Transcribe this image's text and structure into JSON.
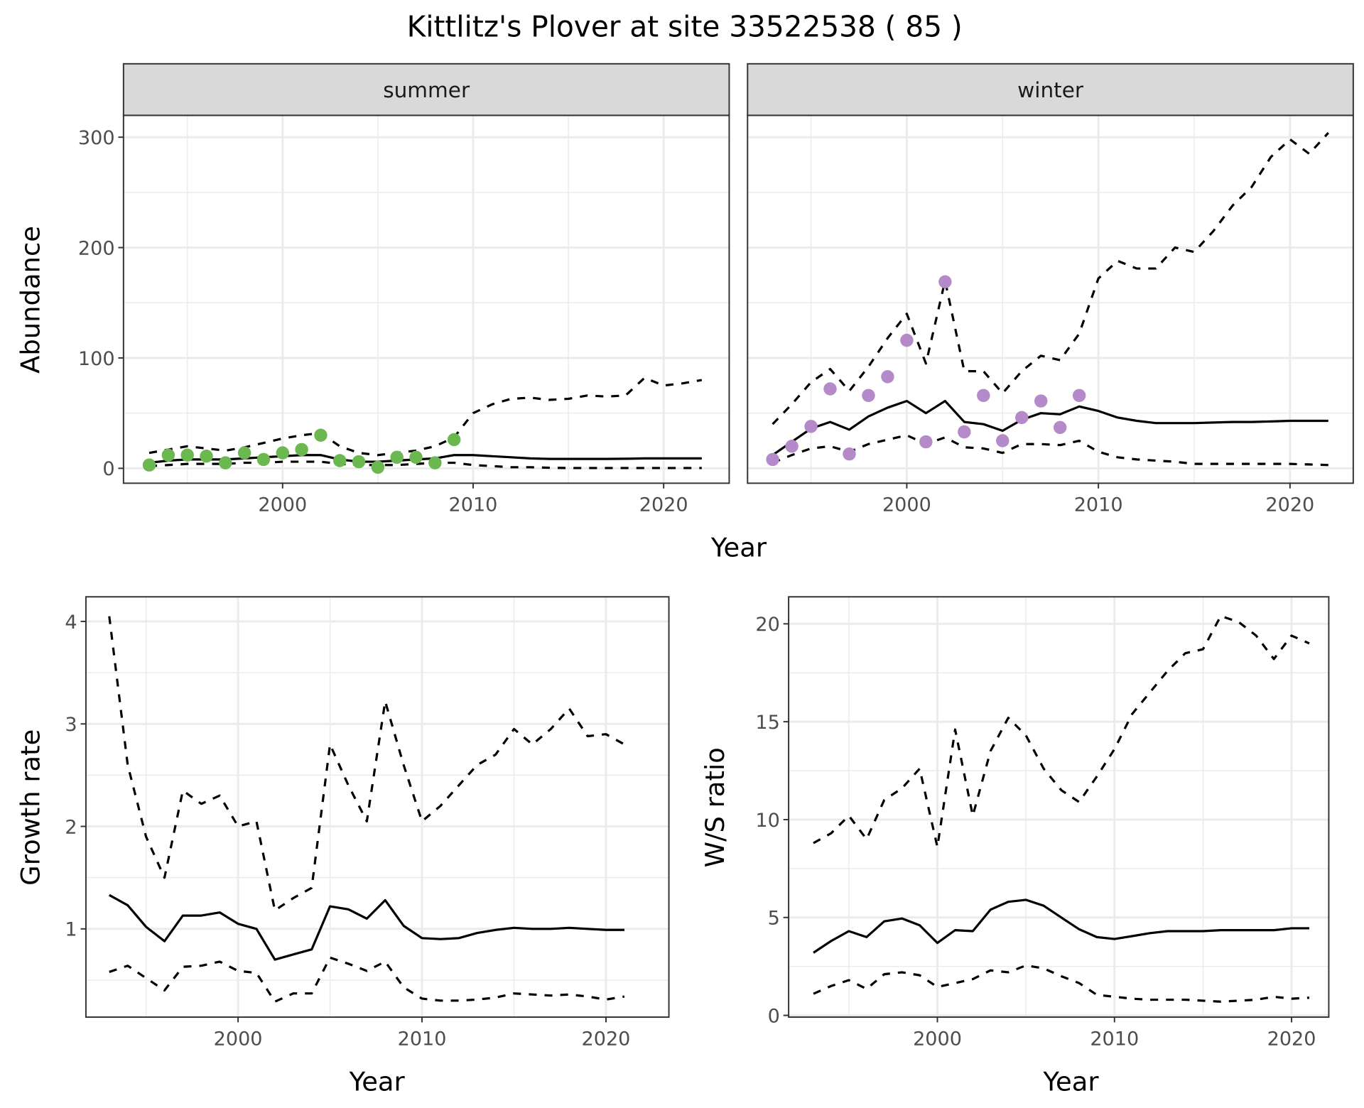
{
  "title": "Kittlitz's Plover at site 33522538 ( 85 )",
  "colors": {
    "summer_points": "#6ab84f",
    "winter_points": "#b48ac8",
    "line": "#000000",
    "grid": "#ebebeb",
    "strip": "#d9d9d9"
  },
  "top_xlabel": "Year",
  "chart_data": [
    {
      "id": "summer",
      "type": "line",
      "strip": "summer",
      "ylabel": "Abundance",
      "xlabel": "",
      "xlim": [
        1991.65,
        2023.44
      ],
      "ylim": [
        -13.5,
        319.8
      ],
      "xticks": [
        2000,
        2010,
        2020
      ],
      "yticks": [
        0,
        100,
        200,
        300
      ],
      "points": {
        "x": [
          1993,
          1994,
          1995,
          1996,
          1997,
          1998,
          1999,
          2000,
          2001,
          2002,
          2003,
          2004,
          2005,
          2006,
          2007,
          2008,
          2009
        ],
        "y": [
          3,
          12,
          12,
          11,
          5,
          14,
          8,
          14,
          17,
          30,
          7,
          6,
          1,
          10,
          10,
          5,
          26
        ]
      },
      "x": [
        1993,
        1994,
        1995,
        1996,
        1997,
        1998,
        1999,
        2000,
        2001,
        2002,
        2003,
        2004,
        2005,
        2006,
        2007,
        2008,
        2009,
        2010,
        2011,
        2012,
        2013,
        2014,
        2015,
        2016,
        2017,
        2018,
        2019,
        2020,
        2021,
        2022
      ],
      "series": [
        {
          "name": "mean",
          "style": "solid",
          "values": [
            5,
            7,
            8,
            8,
            8,
            9,
            10,
            11,
            12,
            12,
            8,
            6,
            6,
            7,
            8,
            9,
            12,
            12,
            11,
            10,
            9,
            8.5,
            8.5,
            8.5,
            8.5,
            8.7,
            9,
            9,
            9,
            9
          ]
        },
        {
          "name": "upper",
          "style": "dashed",
          "values": [
            14,
            17,
            20,
            18,
            16,
            19,
            23,
            27,
            30,
            32,
            20,
            14,
            12,
            14,
            16,
            20,
            28,
            50,
            58,
            63,
            64,
            62,
            63,
            66,
            65,
            66,
            82,
            75,
            77,
            80
          ]
        },
        {
          "name": "lower",
          "style": "dashed",
          "values": [
            2,
            3,
            4,
            4,
            4,
            5,
            5,
            6,
            6,
            6,
            4,
            3,
            3,
            3,
            4,
            5,
            5,
            3,
            2,
            1,
            1,
            0.5,
            0.3,
            0.3,
            0.3,
            0.3,
            0.3,
            0.3,
            0.3,
            0.3
          ]
        }
      ]
    },
    {
      "id": "winter",
      "type": "line",
      "strip": "winter",
      "ylabel": "",
      "xlabel": "",
      "xlim": [
        1991.69,
        2023.3
      ],
      "ylim": [
        -13.5,
        319.8
      ],
      "xticks": [
        2000,
        2010,
        2020
      ],
      "yticks": [
        0,
        100,
        200,
        300
      ],
      "points": {
        "x": [
          1993,
          1994,
          1995,
          1996,
          1997,
          1998,
          1999,
          2000,
          2001,
          2002,
          2003,
          2004,
          2005,
          2006,
          2007,
          2008,
          2009
        ],
        "y": [
          8,
          20,
          38,
          72,
          13,
          66,
          83,
          116,
          24,
          169,
          33,
          66,
          25,
          46,
          61,
          37,
          66
        ]
      },
      "x": [
        1993,
        1994,
        1995,
        1996,
        1997,
        1998,
        1999,
        2000,
        2001,
        2002,
        2003,
        2004,
        2005,
        2006,
        2007,
        2008,
        2009,
        2010,
        2011,
        2012,
        2013,
        2014,
        2015,
        2016,
        2017,
        2018,
        2019,
        2020,
        2021,
        2022
      ],
      "series": [
        {
          "name": "mean",
          "style": "solid",
          "values": [
            12,
            24,
            36,
            42,
            35,
            47,
            55,
            61,
            50,
            61,
            42,
            40,
            34,
            44,
            50,
            49,
            56,
            52,
            46,
            43,
            41,
            41,
            41,
            41.5,
            42,
            42,
            42.5,
            43,
            43,
            43
          ]
        },
        {
          "name": "upper",
          "style": "dashed",
          "values": [
            40,
            58,
            78,
            90,
            70,
            92,
            118,
            140,
            95,
            170,
            88,
            88,
            68,
            88,
            102,
            98,
            122,
            172,
            188,
            181,
            181,
            200,
            196,
            215,
            238,
            255,
            282,
            298,
            285,
            304
          ]
        },
        {
          "name": "lower",
          "style": "dashed",
          "values": [
            5,
            12,
            18,
            20,
            15,
            22,
            26,
            30,
            22,
            28,
            19,
            18,
            14,
            22,
            22,
            21,
            25,
            15,
            10,
            8,
            7,
            6,
            4,
            4,
            4,
            4,
            4,
            4,
            3.5,
            3
          ]
        }
      ]
    },
    {
      "id": "growth",
      "type": "line",
      "ylabel": "Growth rate",
      "xlabel": "Year",
      "xlim": [
        1991.73,
        2023.42
      ],
      "ylim": [
        0.139,
        4.24
      ],
      "xticks": [
        2000,
        2010,
        2020
      ],
      "yticks": [
        1,
        2,
        3,
        4
      ],
      "x": [
        1993,
        1994,
        1995,
        1996,
        1997,
        1998,
        1999,
        2000,
        2001,
        2002,
        2003,
        2004,
        2005,
        2006,
        2007,
        2008,
        2009,
        2010,
        2011,
        2012,
        2013,
        2014,
        2015,
        2016,
        2017,
        2018,
        2019,
        2020,
        2021
      ],
      "series": [
        {
          "name": "mean",
          "style": "solid",
          "values": [
            1.33,
            1.23,
            1.02,
            0.88,
            1.13,
            1.13,
            1.16,
            1.05,
            1.0,
            0.7,
            0.75,
            0.8,
            1.22,
            1.19,
            1.1,
            1.28,
            1.03,
            0.91,
            0.9,
            0.91,
            0.96,
            0.99,
            1.01,
            1.0,
            1.0,
            1.01,
            1.0,
            0.99,
            0.99
          ]
        },
        {
          "name": "upper",
          "style": "dashed",
          "values": [
            4.05,
            2.6,
            1.9,
            1.5,
            2.35,
            2.22,
            2.3,
            2.0,
            2.05,
            1.18,
            1.3,
            1.4,
            2.8,
            2.4,
            2.05,
            3.22,
            2.6,
            2.05,
            2.2,
            2.4,
            2.6,
            2.7,
            2.95,
            2.8,
            2.95,
            3.15,
            2.88,
            2.9,
            2.8
          ]
        },
        {
          "name": "lower",
          "style": "dashed",
          "values": [
            0.58,
            0.64,
            0.52,
            0.4,
            0.63,
            0.64,
            0.68,
            0.59,
            0.57,
            0.29,
            0.37,
            0.37,
            0.72,
            0.66,
            0.59,
            0.68,
            0.43,
            0.32,
            0.3,
            0.3,
            0.31,
            0.33,
            0.37,
            0.36,
            0.35,
            0.36,
            0.34,
            0.31,
            0.34
          ]
        }
      ]
    },
    {
      "id": "ratio",
      "type": "line",
      "ylabel": "W/S ratio",
      "xlabel": "Year",
      "xlim": [
        1991.6,
        2022.1
      ],
      "ylim": [
        -0.09,
        21.38
      ],
      "xticks": [
        2000,
        2010,
        2020
      ],
      "yticks": [
        0,
        5,
        10,
        15,
        20
      ],
      "x": [
        1993,
        1994,
        1995,
        1996,
        1997,
        1998,
        1999,
        2000,
        2001,
        2002,
        2003,
        2004,
        2005,
        2006,
        2007,
        2008,
        2009,
        2010,
        2011,
        2012,
        2013,
        2014,
        2015,
        2016,
        2017,
        2018,
        2019,
        2020,
        2021
      ],
      "series": [
        {
          "name": "mean",
          "style": "solid",
          "values": [
            3.2,
            3.8,
            4.3,
            4.0,
            4.8,
            4.95,
            4.6,
            3.7,
            4.35,
            4.3,
            5.4,
            5.8,
            5.9,
            5.6,
            5.0,
            4.4,
            4.0,
            3.9,
            4.05,
            4.2,
            4.3,
            4.3,
            4.3,
            4.35,
            4.35,
            4.35,
            4.35,
            4.45,
            4.45
          ]
        },
        {
          "name": "upper",
          "style": "dashed",
          "values": [
            8.8,
            9.3,
            10.2,
            9.0,
            11.0,
            11.6,
            12.6,
            8.6,
            14.6,
            10.2,
            13.5,
            15.2,
            14.3,
            12.6,
            11.5,
            10.9,
            12.2,
            13.6,
            15.4,
            16.5,
            17.6,
            18.5,
            18.7,
            20.4,
            20.1,
            19.4,
            18.2,
            19.4,
            19.0
          ]
        },
        {
          "name": "lower",
          "style": "dashed",
          "values": [
            1.1,
            1.5,
            1.8,
            1.35,
            2.1,
            2.2,
            2.05,
            1.45,
            1.65,
            1.85,
            2.3,
            2.2,
            2.55,
            2.4,
            2.0,
            1.65,
            1.05,
            0.95,
            0.85,
            0.8,
            0.8,
            0.8,
            0.75,
            0.7,
            0.75,
            0.8,
            0.95,
            0.85,
            0.9
          ]
        }
      ]
    }
  ]
}
